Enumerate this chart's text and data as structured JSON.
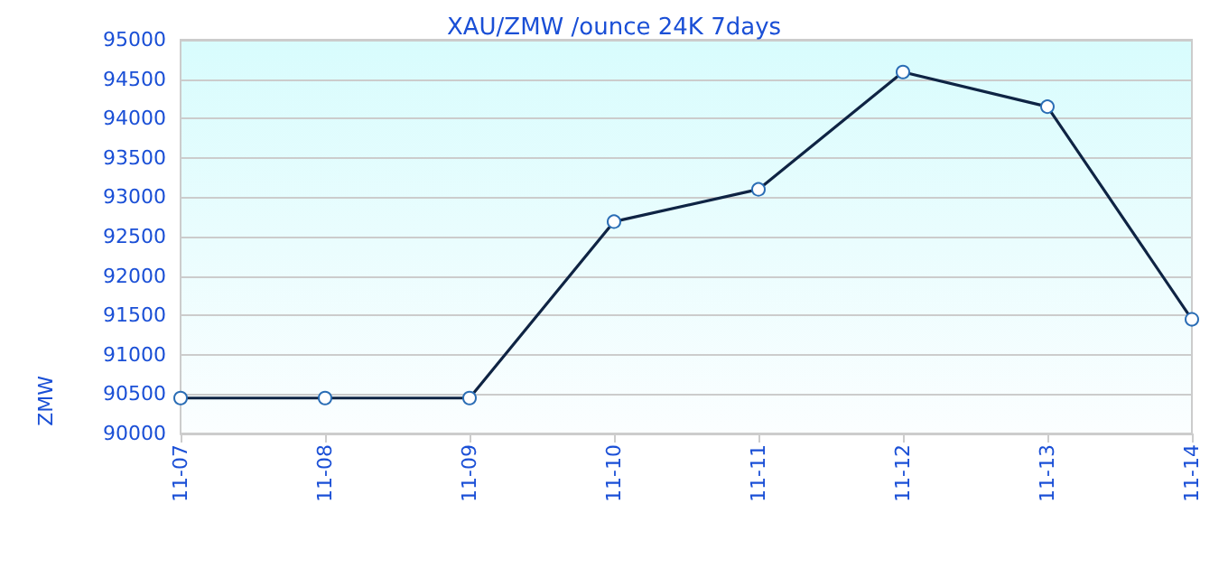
{
  "chart_data": {
    "type": "line",
    "title": "XAU/ZMW /ounce 24K 7days",
    "ylabel": "ZMW",
    "categories": [
      "11-07",
      "11-08",
      "11-09",
      "11-10",
      "11-11",
      "11-12",
      "11-13",
      "11-14"
    ],
    "series": [
      {
        "color": "#0f2444",
        "values": [
          90450,
          90450,
          90450,
          92690,
          93100,
          94590,
          94150,
          91450
        ]
      }
    ],
    "ylim": [
      90000,
      95000
    ],
    "yticks": [
      90000,
      90500,
      91000,
      91500,
      92000,
      92500,
      93000,
      93500,
      94000,
      94500,
      95000
    ],
    "grid": "y",
    "marker": "circle",
    "line_style": "solid"
  }
}
